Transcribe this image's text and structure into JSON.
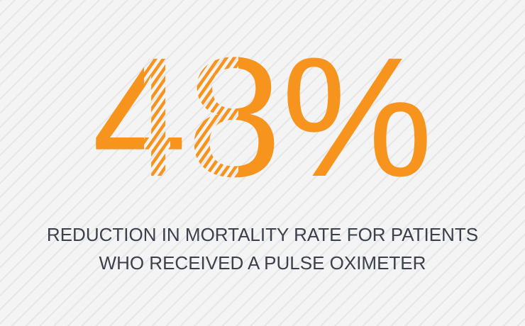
{
  "stat": "48%",
  "caption_lines": [
    "REDUCTION IN MORTALITY RATE FOR PATIENTS",
    "WHO RECEIVED A PULSE OXIMETER"
  ]
}
